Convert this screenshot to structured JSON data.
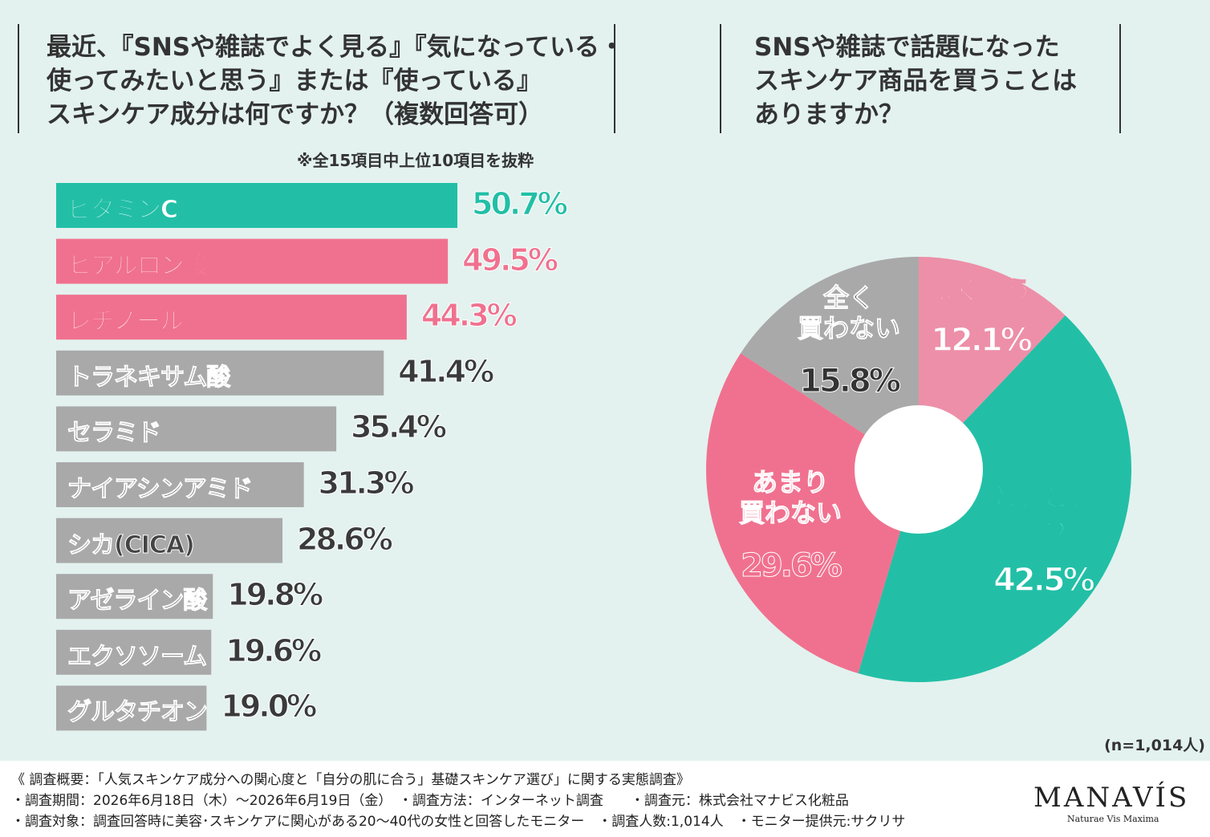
{
  "chart_data": [
    {
      "type": "bar",
      "orientation": "horizontal",
      "title": "最近、『SNSや雑誌でよく見る』『気になっている・\n使ってみたいと思う』または『使っている』\nスキンケア成分は何ですか？（複数回答可）",
      "note": "※全15項目中上位10項目を抜粋",
      "categories": [
        "ビタミンC",
        "ヒアルロン酸",
        "レチノール",
        "トラネキサム酸",
        "セラミド",
        "ナイアシンアミド",
        "シカ(CICA)",
        "アゼライン酸",
        "エクソソーム",
        "グルタチオン"
      ],
      "values": [
        50.7,
        49.5,
        44.3,
        41.4,
        35.4,
        31.3,
        28.6,
        19.8,
        19.6,
        19.0
      ],
      "value_labels": [
        "50.7%",
        "49.5%",
        "44.3%",
        "41.4%",
        "35.4%",
        "31.3%",
        "28.6%",
        "19.8%",
        "19.6%",
        "19.0%"
      ],
      "colors": [
        "#22bfa6",
        "#f0718f",
        "#f0718f",
        "#a9a9a9",
        "#a9a9a9",
        "#a9a9a9",
        "#a9a9a9",
        "#a9a9a9",
        "#a9a9a9",
        "#a9a9a9"
      ]
    },
    {
      "type": "donut",
      "title": "SNSや雑誌で話題になった\nスキンケア商品を買うことは\nありますか？",
      "categories": [
        "よく買う",
        "ときどき\n買う",
        "あまり\n買わない",
        "全く\n買わない"
      ],
      "values": [
        12.1,
        42.5,
        29.6,
        15.8
      ],
      "value_labels": [
        "12.1%",
        "42.5%",
        "29.6%",
        "15.8%"
      ],
      "colors": [
        "#ed8fa8",
        "#22bfa6",
        "#f0718f",
        "#a9a9a9"
      ],
      "note": "(n=1,014人)"
    }
  ],
  "footer": {
    "lines": [
      "《 調査概要：「人気スキンケア成分への関心度と「自分の肌に合う」基礎スキンケア選び」に関する実態調査》",
      "・調査期間：2026年6月18日（木）～2026年6月19日（金）　・調査方法：インターネット調査　　・調査元：株式会社マナビス化粧品",
      "・調査対象：調査回答時に美容･スキンケアに関心がある20～40代の女性と回答したモニター　・調査人数:1,014人　・モニター提供元:サクリサ"
    ],
    "logo": "MANAVÍS",
    "tagline": "Naturae Vis Maxima"
  }
}
